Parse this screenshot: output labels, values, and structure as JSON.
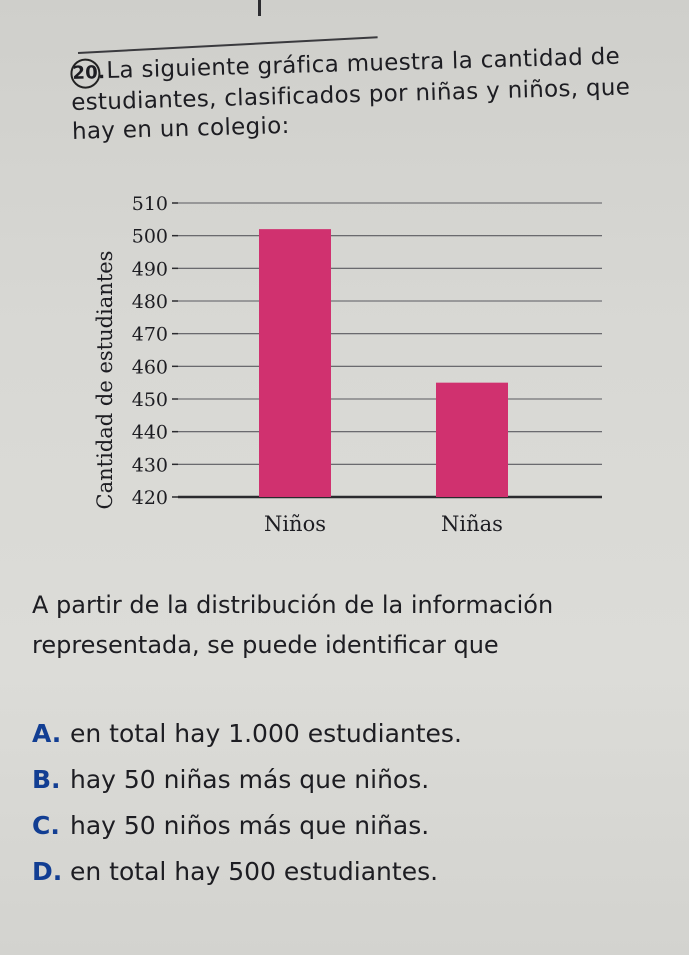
{
  "question": {
    "number": "20.",
    "text": "La siguiente gráfica muestra la cantidad de estudiantes, clasificados por niñas y niños, que hay en un colegio:"
  },
  "chart_data": {
    "type": "bar",
    "categories": [
      "Niños",
      "Niñas"
    ],
    "values": [
      502,
      455
    ],
    "title": "",
    "xlabel": "",
    "ylabel": "Cantidad de estudiantes",
    "ylim": [
      420,
      510
    ],
    "yticks": [
      420,
      430,
      440,
      450,
      460,
      470,
      480,
      490,
      500,
      510
    ],
    "grid": true,
    "bar_color": "#d0316f",
    "legend": "none"
  },
  "prompt": "A partir de la distribución de la información representada, se puede identificar que",
  "options": [
    {
      "letter": "A.",
      "text": "en total hay 1.000 estudiantes."
    },
    {
      "letter": "B.",
      "text": "hay 50 niñas más que niños."
    },
    {
      "letter": "C.",
      "text": "hay 50 niños más que niñas."
    },
    {
      "letter": "D.",
      "text": "en total hay 500 estudiantes."
    }
  ]
}
